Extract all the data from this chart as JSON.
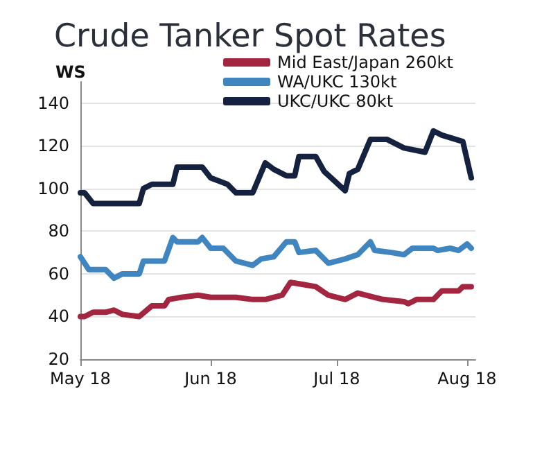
{
  "chart_data": {
    "type": "line",
    "title": "Crude Tanker Spot Rates",
    "ylabel": "WS",
    "xlim": [
      "2018-05-01",
      "2018-08-03"
    ],
    "xticks": [
      {
        "value": "2018-05-01",
        "label": "May 18"
      },
      {
        "value": "2018-06-01",
        "label": "Jun 18"
      },
      {
        "value": "2018-07-01",
        "label": "Jul 18"
      },
      {
        "value": "2018-08-01",
        "label": "Aug 18"
      }
    ],
    "ylim": [
      20,
      150
    ],
    "yticks": [
      20,
      40,
      60,
      80,
      100,
      120,
      140
    ],
    "grid": "y",
    "legend": "top",
    "marker": "none",
    "line_style": "solid",
    "series": [
      {
        "name": "Mid East/Japan 260kt",
        "color": "#a3253f",
        "x": [
          "2018-05-01",
          "2018-05-02",
          "2018-05-04",
          "2018-05-07",
          "2018-05-09",
          "2018-05-11",
          "2018-05-15",
          "2018-05-18",
          "2018-05-21",
          "2018-05-22",
          "2018-05-25",
          "2018-05-29",
          "2018-06-01",
          "2018-06-07",
          "2018-06-11",
          "2018-06-14",
          "2018-06-18",
          "2018-06-20",
          "2018-06-23",
          "2018-06-26",
          "2018-06-29",
          "2018-07-03",
          "2018-07-06",
          "2018-07-10",
          "2018-07-12",
          "2018-07-17",
          "2018-07-18",
          "2018-07-20",
          "2018-07-24",
          "2018-07-26",
          "2018-07-30",
          "2018-07-31",
          "2018-08-02"
        ],
        "values": [
          40,
          40,
          42,
          42,
          43,
          41,
          40,
          45,
          45,
          48,
          49,
          50,
          49,
          49,
          48,
          48,
          50,
          56,
          55,
          54,
          50,
          48,
          51,
          49,
          48,
          47,
          46,
          48,
          48,
          52,
          52,
          54,
          54
        ]
      },
      {
        "name": "WA/UKC 130kt",
        "color": "#3f86c0",
        "x": [
          "2018-05-01",
          "2018-05-03",
          "2018-05-07",
          "2018-05-09",
          "2018-05-11",
          "2018-05-15",
          "2018-05-16",
          "2018-05-21",
          "2018-05-23",
          "2018-05-24",
          "2018-05-29",
          "2018-05-30",
          "2018-06-01",
          "2018-06-04",
          "2018-06-07",
          "2018-06-11",
          "2018-06-13",
          "2018-06-16",
          "2018-06-19",
          "2018-06-21",
          "2018-06-22",
          "2018-06-26",
          "2018-06-29",
          "2018-07-03",
          "2018-07-06",
          "2018-07-09",
          "2018-07-10",
          "2018-07-14",
          "2018-07-17",
          "2018-07-19",
          "2018-07-24",
          "2018-07-25",
          "2018-07-28",
          "2018-07-30",
          "2018-08-01",
          "2018-08-02"
        ],
        "values": [
          68,
          62,
          62,
          58,
          60,
          60,
          66,
          66,
          77,
          75,
          75,
          77,
          72,
          72,
          66,
          64,
          67,
          68,
          75,
          75,
          70,
          71,
          65,
          67,
          69,
          75,
          71,
          70,
          69,
          72,
          72,
          71,
          72,
          71,
          74,
          72
        ]
      },
      {
        "name": "UKC/UKC 80kt",
        "color": "#14213f",
        "x": [
          "2018-05-01",
          "2018-05-02",
          "2018-05-04",
          "2018-05-15",
          "2018-05-16",
          "2018-05-18",
          "2018-05-23",
          "2018-05-24",
          "2018-05-30",
          "2018-06-01",
          "2018-06-05",
          "2018-06-07",
          "2018-06-11",
          "2018-06-14",
          "2018-06-16",
          "2018-06-19",
          "2018-06-21",
          "2018-06-22",
          "2018-06-26",
          "2018-06-28",
          "2018-07-03",
          "2018-07-04",
          "2018-07-06",
          "2018-07-09",
          "2018-07-13",
          "2018-07-17",
          "2018-07-22",
          "2018-07-24",
          "2018-07-26",
          "2018-07-31",
          "2018-08-02"
        ],
        "values": [
          98,
          98,
          93,
          93,
          100,
          102,
          102,
          110,
          110,
          105,
          102,
          98,
          98,
          112,
          109,
          106,
          106,
          115,
          115,
          108,
          99,
          107,
          109,
          123,
          123,
          119,
          117,
          127,
          125,
          122,
          105
        ]
      }
    ]
  }
}
